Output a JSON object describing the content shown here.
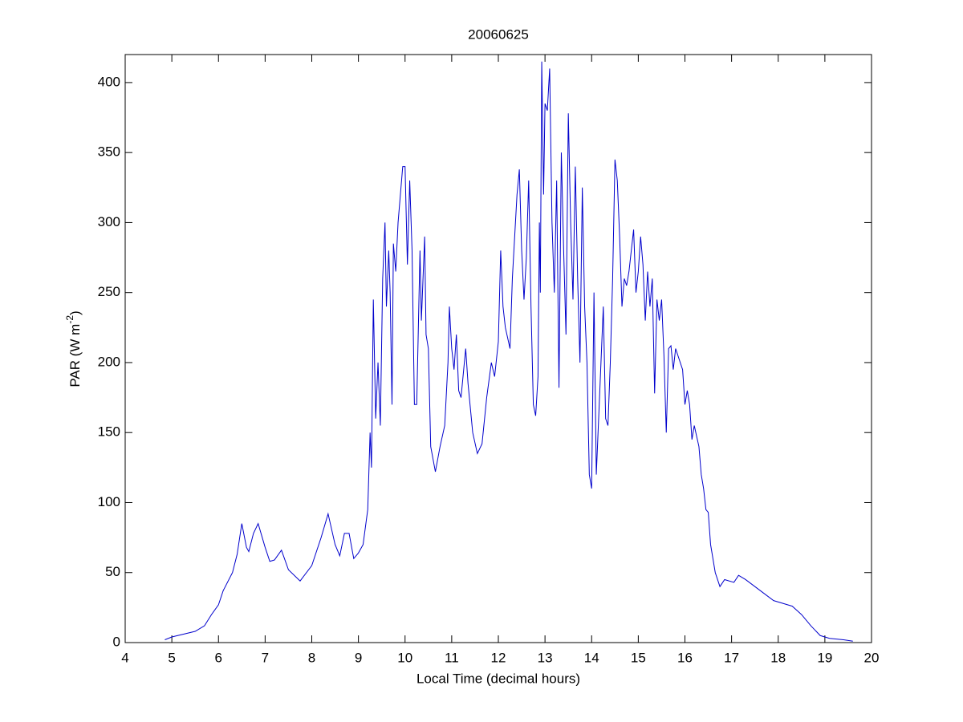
{
  "chart_data": {
    "type": "line",
    "title": "20060625",
    "xlabel": "Local Time (decimal hours)",
    "ylabel": [
      "PAR (W m",
      "-2",
      ")"
    ],
    "xlim": [
      4,
      20
    ],
    "xticks": [
      4,
      5,
      6,
      7,
      8,
      9,
      10,
      11,
      12,
      13,
      14,
      15,
      16,
      17,
      18,
      19,
      20
    ],
    "ylim": [
      0,
      420
    ],
    "yticks": [
      0,
      50,
      100,
      150,
      200,
      250,
      300,
      350,
      400
    ],
    "grid": false,
    "series": [
      {
        "color": "#0000cc",
        "x": [
          4.85,
          5.0,
          5.5,
          5.7,
          5.85,
          6.0,
          6.1,
          6.3,
          6.4,
          6.5,
          6.6,
          6.65,
          6.75,
          6.85,
          7.0,
          7.1,
          7.2,
          7.35,
          7.5,
          7.75,
          8.0,
          8.2,
          8.35,
          8.5,
          8.6,
          8.7,
          8.8,
          8.9,
          9.0,
          9.1,
          9.2,
          9.25,
          9.28,
          9.32,
          9.37,
          9.42,
          9.47,
          9.52,
          9.57,
          9.6,
          9.65,
          9.68,
          9.72,
          9.75,
          9.8,
          9.85,
          9.9,
          9.95,
          10.0,
          10.05,
          10.1,
          10.15,
          10.2,
          10.25,
          10.32,
          10.35,
          10.42,
          10.45,
          10.5,
          10.55,
          10.65,
          10.75,
          10.85,
          10.92,
          10.95,
          11.0,
          11.05,
          11.1,
          11.15,
          11.2,
          11.3,
          11.35,
          11.45,
          11.55,
          11.65,
          11.75,
          11.85,
          11.92,
          12.0,
          12.05,
          12.1,
          12.15,
          12.25,
          12.3,
          12.35,
          12.4,
          12.45,
          12.5,
          12.55,
          12.6,
          12.65,
          12.7,
          12.75,
          12.8,
          12.85,
          12.88,
          12.9,
          12.93,
          12.97,
          13.0,
          13.05,
          13.1,
          13.15,
          13.2,
          13.25,
          13.3,
          13.35,
          13.4,
          13.45,
          13.5,
          13.55,
          13.6,
          13.65,
          13.7,
          13.75,
          13.8,
          13.85,
          13.9,
          13.95,
          14.0,
          14.05,
          14.1,
          14.15,
          14.2,
          14.25,
          14.3,
          14.35,
          14.4,
          14.45,
          14.5,
          14.55,
          14.6,
          14.65,
          14.7,
          14.75,
          14.8,
          14.85,
          14.9,
          14.95,
          15.0,
          15.05,
          15.1,
          15.15,
          15.2,
          15.25,
          15.3,
          15.35,
          15.4,
          15.45,
          15.5,
          15.55,
          15.6,
          15.65,
          15.7,
          15.75,
          15.8,
          15.85,
          15.95,
          16.0,
          16.05,
          16.1,
          16.15,
          16.2,
          16.3,
          16.35,
          16.4,
          16.45,
          16.5,
          16.55,
          16.65,
          16.75,
          16.85,
          17.05,
          17.15,
          17.3,
          17.5,
          17.7,
          17.9,
          18.1,
          18.3,
          18.5,
          18.7,
          18.9,
          19.1,
          19.4,
          19.6
        ],
        "values": [
          2,
          4,
          8,
          12,
          20,
          27,
          37,
          50,
          63,
          85,
          68,
          65,
          78,
          85,
          68,
          58,
          59,
          66,
          52,
          44,
          55,
          75,
          92,
          70,
          62,
          78,
          78,
          60,
          64,
          70,
          95,
          150,
          125,
          245,
          160,
          200,
          155,
          260,
          300,
          240,
          280,
          250,
          170,
          285,
          265,
          300,
          320,
          340,
          340,
          270,
          330,
          280,
          170,
          170,
          280,
          230,
          290,
          220,
          210,
          140,
          122,
          140,
          155,
          200,
          240,
          210,
          195,
          220,
          180,
          175,
          210,
          185,
          150,
          135,
          142,
          175,
          200,
          190,
          215,
          280,
          240,
          225,
          210,
          260,
          290,
          320,
          338,
          280,
          245,
          275,
          330,
          240,
          170,
          162,
          190,
          300,
          250,
          415,
          320,
          385,
          380,
          410,
          300,
          250,
          330,
          182,
          350,
          280,
          220,
          378,
          300,
          245,
          340,
          260,
          200,
          325,
          240,
          200,
          120,
          110,
          250,
          120,
          160,
          200,
          240,
          160,
          155,
          200,
          260,
          345,
          330,
          290,
          240,
          260,
          255,
          265,
          280,
          295,
          250,
          265,
          290,
          270,
          230,
          265,
          240,
          260,
          178,
          245,
          230,
          245,
          205,
          150,
          210,
          212,
          195,
          210,
          205,
          195,
          170,
          180,
          170,
          145,
          155,
          140,
          120,
          110,
          95,
          93,
          70,
          50,
          40,
          45,
          43,
          48,
          45,
          40,
          35,
          30,
          28,
          26,
          20,
          12,
          5,
          3,
          2,
          1
        ]
      }
    ]
  }
}
